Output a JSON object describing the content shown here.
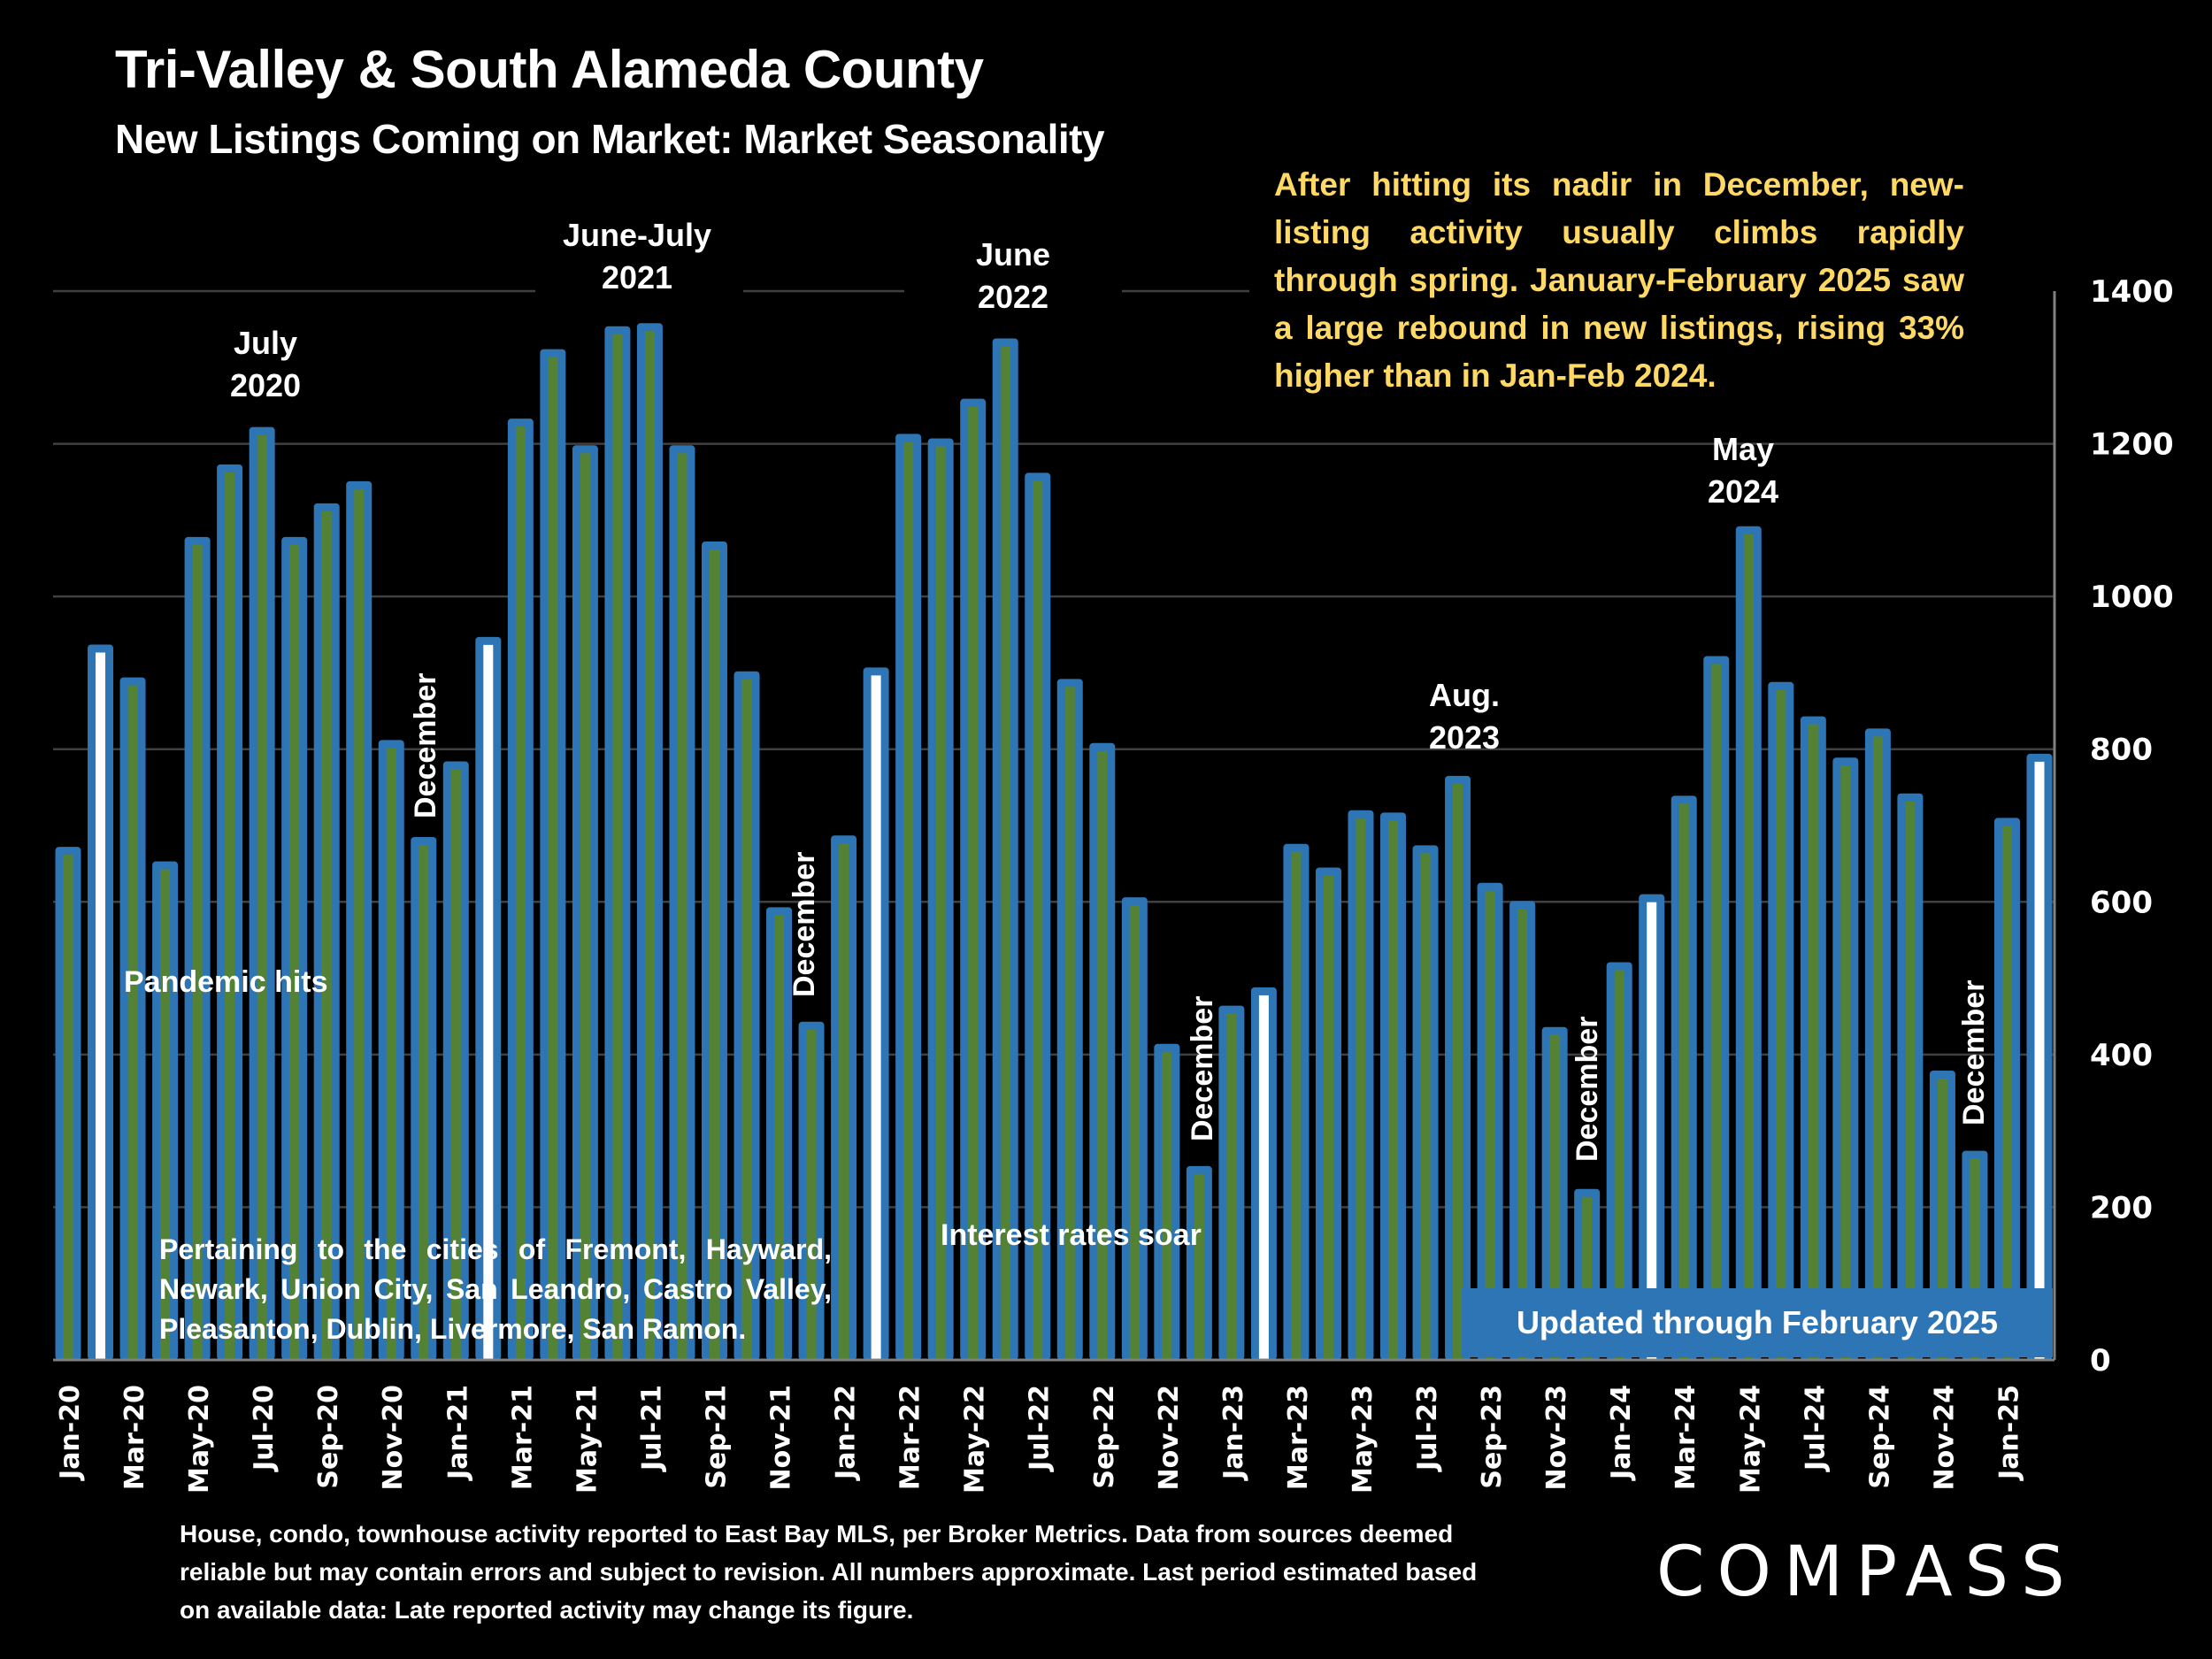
{
  "header": {
    "title": "Tri-Valley & South Alameda County",
    "subtitle": "New Listings Coming on Market: Market Seasonality"
  },
  "note": "After hitting its nadir in December, new-listing activity usually climbs rapidly through spring. January-February 2025 saw a large rebound in new listings, rising 33% higher than in Jan-Feb 2024.",
  "annotations": {
    "july_2020": [
      "July",
      "2020"
    ],
    "june_july_2021": [
      "June-July",
      "2021"
    ],
    "june_2022": [
      "June",
      "2022"
    ],
    "aug_2023": [
      "Aug.",
      "2023"
    ],
    "may_2024": [
      "May",
      "2024"
    ],
    "december": "December",
    "pandemic": "Pandemic hits",
    "interest": "Interest rates soar",
    "cities": "Pertaining to the cities of Fremont, Hayward, Newark, Union City, San Leandro, Castro Valley, Pleasanton, Dublin, Livermore, San Ramon.",
    "updated": "Updated through February 2025"
  },
  "footer": "House, condo, townhouse activity reported to East Bay MLS, per Broker Metrics. Data from sources deemed reliable but may contain errors and subject to revision. All numbers approximate. Last period estimated based on available data: Late reported activity may change its figure.",
  "logo": "COMPASS",
  "colors": {
    "background": "#000000",
    "bar_outline": "#2E75B6",
    "bar_fill": "#548235",
    "highlight_fill": "#FFFFFF",
    "note_text": "#FFD966",
    "gridline": "#404040"
  },
  "chart_data": {
    "type": "bar",
    "title": "New Listings Coming on Market: Market Seasonality",
    "xlabel": "",
    "ylabel": "",
    "ylim": [
      0,
      1400
    ],
    "yticks": [
      0,
      200,
      400,
      600,
      800,
      1000,
      1200,
      1400
    ],
    "y_axis_side": "right",
    "grid": true,
    "categories": [
      "Jan-20",
      "Feb-20",
      "Mar-20",
      "Apr-20",
      "May-20",
      "Jun-20",
      "Jul-20",
      "Aug-20",
      "Sep-20",
      "Oct-20",
      "Nov-20",
      "Dec-20",
      "Jan-21",
      "Feb-21",
      "Mar-21",
      "Apr-21",
      "May-21",
      "Jun-21",
      "Jul-21",
      "Aug-21",
      "Sep-21",
      "Oct-21",
      "Nov-21",
      "Dec-21",
      "Jan-22",
      "Feb-22",
      "Mar-22",
      "Apr-22",
      "May-22",
      "Jun-22",
      "Jul-22",
      "Aug-22",
      "Sep-22",
      "Oct-22",
      "Nov-22",
      "Dec-22",
      "Jan-23",
      "Feb-23",
      "Mar-23",
      "Apr-23",
      "May-23",
      "Jun-23",
      "Jul-23",
      "Aug-23",
      "Sep-23",
      "Oct-23",
      "Nov-23",
      "Dec-23",
      "Jan-24",
      "Feb-24",
      "Mar-24",
      "Apr-24",
      "May-24",
      "Jun-24",
      "Jul-24",
      "Aug-24",
      "Sep-24",
      "Oct-24",
      "Nov-24",
      "Dec-24",
      "Jan-25",
      "Feb-25"
    ],
    "x_tick_labels_shown_every": 2,
    "values": [
      672,
      937,
      894,
      653,
      1078,
      1173,
      1222,
      1078,
      1122,
      1151,
      812,
      685,
      784,
      947,
      1233,
      1324,
      1198,
      1354,
      1358,
      1198,
      1072,
      902,
      593,
      443,
      687,
      907,
      1213,
      1207,
      1259,
      1338,
      1162,
      892,
      808,
      606,
      414,
      254,
      464,
      488,
      676,
      645,
      720,
      717,
      674,
      765,
      625,
      601,
      436,
      224,
      521,
      610,
      739,
      922,
      1092,
      888,
      843,
      789,
      827,
      742,
      379,
      274,
      710,
      794
    ],
    "highlighted": [
      "Feb-20",
      "Feb-21",
      "Feb-22",
      "Feb-23",
      "Feb-24",
      "Feb-25"
    ]
  }
}
